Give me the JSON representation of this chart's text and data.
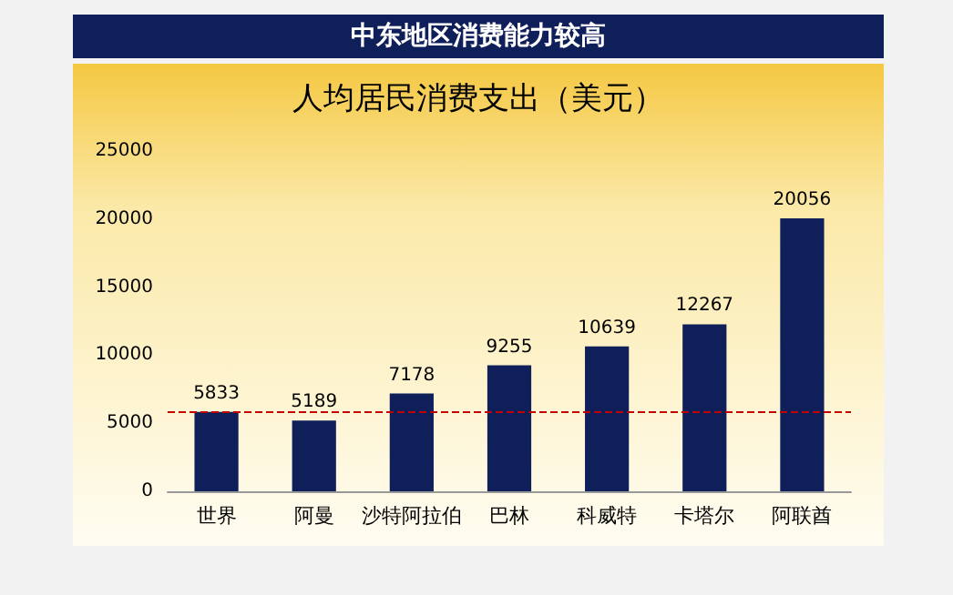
{
  "chart_data": {
    "type": "bar",
    "title": "中东地区消费能力较高",
    "subtitle": "人均居民消费支出（美元）",
    "categories": [
      "世界",
      "阿曼",
      "沙特阿拉伯",
      "巴林",
      "科威特",
      "卡塔尔",
      "阿联酋"
    ],
    "values": [
      5833,
      5189,
      7178,
      9255,
      10639,
      12267,
      20056
    ],
    "color": "#0f1f5a",
    "ylim": [
      0,
      25000
    ],
    "yticks": [
      0,
      5000,
      10000,
      15000,
      20000,
      25000
    ],
    "grid": false,
    "data_labels": true,
    "ref_lines": [
      {
        "axis": "y",
        "value": 5833,
        "color": "#c00000",
        "line_style": "dashed"
      }
    ]
  }
}
